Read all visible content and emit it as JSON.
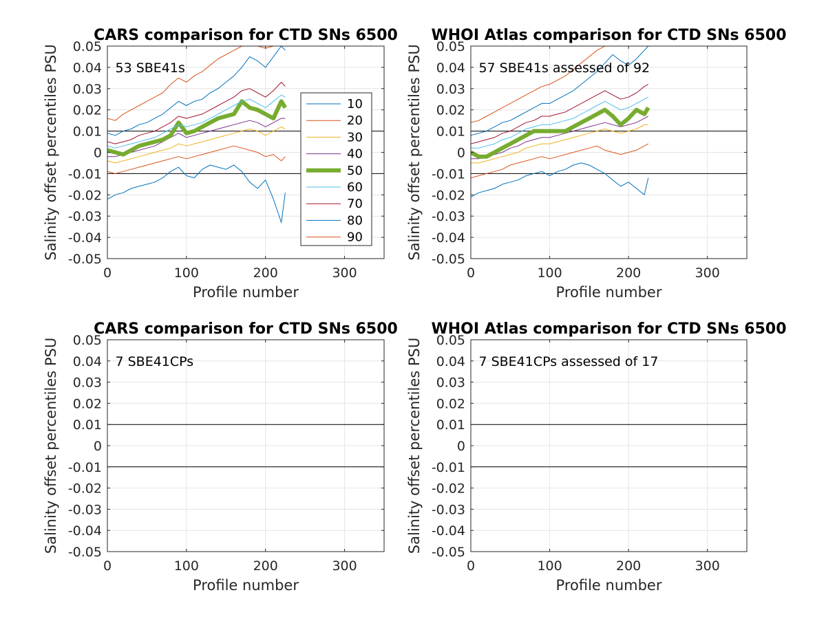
{
  "chart_data": [
    {
      "type": "line",
      "title": "CARS comparison for CTD SNs 6500",
      "xlabel": "Profile number",
      "ylabel": "Salinity offset percentiles PSU",
      "xlim": [
        0,
        350
      ],
      "ylim": [
        -0.05,
        0.05
      ],
      "xticks": [
        0,
        100,
        200,
        300
      ],
      "yticks": [
        -0.05,
        -0.04,
        -0.03,
        -0.02,
        -0.01,
        0,
        0.01,
        0.02,
        0.03,
        0.04,
        0.05
      ],
      "ytick_labels": [
        "-0.05",
        "-0.04",
        "-0.03",
        "-0.02",
        "-0.01",
        "0",
        "0.01",
        "0.02",
        "0.03",
        "0.04",
        "0.05"
      ],
      "xtick_labels": [
        "0",
        "100",
        "200",
        "300"
      ],
      "grid": true,
      "reference_lines": [
        0.01,
        -0.01
      ],
      "annotation": "53 SBE41s",
      "legend": {
        "placement": "inside-right",
        "entries": [
          "10",
          "20",
          "30",
          "40",
          "50",
          "60",
          "70",
          "80",
          "90"
        ]
      },
      "x": [
        0,
        10,
        20,
        30,
        40,
        50,
        60,
        70,
        80,
        90,
        100,
        110,
        120,
        130,
        140,
        150,
        160,
        170,
        180,
        190,
        200,
        210,
        220,
        225
      ],
      "series": [
        {
          "name": "10",
          "color": "#0072BD",
          "width": 1,
          "values": [
            -0.022,
            -0.02,
            -0.019,
            -0.017,
            -0.016,
            -0.015,
            -0.014,
            -0.012,
            -0.009,
            -0.007,
            -0.011,
            -0.012,
            -0.008,
            -0.006,
            -0.007,
            -0.008,
            -0.006,
            -0.009,
            -0.014,
            -0.017,
            -0.013,
            -0.022,
            -0.033,
            -0.019
          ]
        },
        {
          "name": "20",
          "color": "#D95319",
          "width": 1,
          "values": [
            -0.009,
            -0.01,
            -0.009,
            -0.008,
            -0.007,
            -0.006,
            -0.005,
            -0.004,
            -0.003,
            -0.002,
            -0.003,
            -0.002,
            -0.001,
            0.0,
            0.001,
            0.002,
            0.003,
            0.002,
            0.001,
            0.0,
            -0.002,
            -0.001,
            -0.004,
            -0.002
          ]
        },
        {
          "name": "30",
          "color": "#EDB120",
          "width": 1,
          "values": [
            -0.004,
            -0.005,
            -0.004,
            -0.003,
            -0.002,
            -0.001,
            0.0,
            0.001,
            0.002,
            0.004,
            0.003,
            0.004,
            0.005,
            0.006,
            0.007,
            0.008,
            0.009,
            0.01,
            0.011,
            0.01,
            0.008,
            0.01,
            0.012,
            0.011
          ]
        },
        {
          "name": "40",
          "color": "#7E2F8E",
          "width": 1,
          "values": [
            -0.002,
            -0.002,
            -0.001,
            0.0,
            0.001,
            0.002,
            0.003,
            0.005,
            0.007,
            0.009,
            0.007,
            0.008,
            0.009,
            0.01,
            0.011,
            0.012,
            0.013,
            0.014,
            0.015,
            0.014,
            0.012,
            0.014,
            0.016,
            0.016
          ]
        },
        {
          "name": "50",
          "color": "#77AC30",
          "width": 6,
          "values": [
            0.001,
            0.0,
            -0.001,
            0.001,
            0.003,
            0.004,
            0.005,
            0.006,
            0.008,
            0.014,
            0.009,
            0.01,
            0.012,
            0.014,
            0.016,
            0.017,
            0.018,
            0.024,
            0.021,
            0.02,
            0.018,
            0.016,
            0.024,
            0.021
          ]
        },
        {
          "name": "60",
          "color": "#4DBEEE",
          "width": 1,
          "values": [
            0.003,
            0.002,
            0.003,
            0.004,
            0.005,
            0.006,
            0.007,
            0.009,
            0.011,
            0.013,
            0.012,
            0.013,
            0.014,
            0.016,
            0.018,
            0.02,
            0.022,
            0.024,
            0.025,
            0.023,
            0.021,
            0.024,
            0.027,
            0.026
          ]
        },
        {
          "name": "70",
          "color": "#A2142F",
          "width": 1,
          "values": [
            0.005,
            0.004,
            0.005,
            0.006,
            0.008,
            0.009,
            0.01,
            0.012,
            0.014,
            0.017,
            0.016,
            0.017,
            0.018,
            0.02,
            0.022,
            0.024,
            0.026,
            0.029,
            0.03,
            0.028,
            0.026,
            0.029,
            0.033,
            0.031
          ]
        },
        {
          "name": "80",
          "color": "#0072BD",
          "width": 1,
          "values": [
            0.009,
            0.008,
            0.01,
            0.011,
            0.013,
            0.014,
            0.016,
            0.018,
            0.021,
            0.024,
            0.022,
            0.024,
            0.025,
            0.028,
            0.03,
            0.033,
            0.036,
            0.04,
            0.045,
            0.043,
            0.04,
            0.045,
            0.05,
            0.048
          ]
        },
        {
          "name": "90",
          "color": "#D95319",
          "width": 1,
          "values": [
            0.016,
            0.015,
            0.018,
            0.02,
            0.022,
            0.024,
            0.026,
            0.028,
            0.032,
            0.035,
            0.033,
            0.036,
            0.038,
            0.041,
            0.044,
            0.046,
            0.048,
            0.05,
            0.05,
            0.05,
            0.049,
            0.05,
            0.05,
            0.05
          ]
        }
      ]
    },
    {
      "type": "line",
      "title": "WHOI Atlas comparison for CTD SNs 6500",
      "xlabel": "Profile number",
      "ylabel": "Salinity offset percentiles PSU",
      "xlim": [
        0,
        350
      ],
      "ylim": [
        -0.05,
        0.05
      ],
      "xticks": [
        0,
        100,
        200,
        300
      ],
      "yticks": [
        -0.05,
        -0.04,
        -0.03,
        -0.02,
        -0.01,
        0,
        0.01,
        0.02,
        0.03,
        0.04,
        0.05
      ],
      "ytick_labels": [
        "-0.05",
        "-0.04",
        "-0.03",
        "-0.02",
        "-0.01",
        "0",
        "0.01",
        "0.02",
        "0.03",
        "0.04",
        "0.05"
      ],
      "xtick_labels": [
        "0",
        "100",
        "200",
        "300"
      ],
      "grid": true,
      "reference_lines": [
        0.01,
        -0.01
      ],
      "annotation": "57 SBE41s assessed of 92",
      "x": [
        0,
        10,
        20,
        30,
        40,
        50,
        60,
        70,
        80,
        90,
        100,
        110,
        120,
        130,
        140,
        150,
        160,
        170,
        180,
        190,
        200,
        210,
        220,
        225
      ],
      "series": [
        {
          "name": "10",
          "color": "#0072BD",
          "width": 1,
          "values": [
            -0.021,
            -0.019,
            -0.018,
            -0.017,
            -0.015,
            -0.014,
            -0.013,
            -0.011,
            -0.01,
            -0.009,
            -0.011,
            -0.009,
            -0.008,
            -0.006,
            -0.005,
            -0.006,
            -0.008,
            -0.01,
            -0.013,
            -0.016,
            -0.014,
            -0.017,
            -0.02,
            -0.012
          ]
        },
        {
          "name": "20",
          "color": "#D95319",
          "width": 1,
          "values": [
            -0.012,
            -0.011,
            -0.01,
            -0.009,
            -0.008,
            -0.006,
            -0.005,
            -0.004,
            -0.003,
            -0.002,
            -0.003,
            -0.002,
            -0.001,
            0.0,
            0.001,
            0.002,
            0.003,
            0.001,
            0.0,
            -0.001,
            0.0,
            0.001,
            0.003,
            0.004
          ]
        },
        {
          "name": "30",
          "color": "#EDB120",
          "width": 1,
          "values": [
            -0.005,
            -0.005,
            -0.004,
            -0.003,
            -0.002,
            -0.001,
            0.0,
            0.002,
            0.003,
            0.004,
            0.004,
            0.005,
            0.006,
            0.007,
            0.008,
            0.009,
            0.01,
            0.011,
            0.01,
            0.009,
            0.01,
            0.011,
            0.013,
            0.013
          ]
        },
        {
          "name": "40",
          "color": "#7E2F8E",
          "width": 1,
          "values": [
            -0.003,
            -0.003,
            -0.002,
            -0.001,
            0.0,
            0.002,
            0.003,
            0.005,
            0.006,
            0.007,
            0.007,
            0.008,
            0.009,
            0.01,
            0.011,
            0.012,
            0.013,
            0.014,
            0.013,
            0.012,
            0.013,
            0.014,
            0.016,
            0.017
          ]
        },
        {
          "name": "50",
          "color": "#77AC30",
          "width": 6,
          "values": [
            0.0,
            -0.002,
            -0.002,
            0.0,
            0.002,
            0.004,
            0.006,
            0.008,
            0.01,
            0.01,
            0.01,
            0.01,
            0.01,
            0.012,
            0.014,
            0.016,
            0.018,
            0.02,
            0.017,
            0.013,
            0.016,
            0.02,
            0.018,
            0.021
          ]
        },
        {
          "name": "60",
          "color": "#4DBEEE",
          "width": 1,
          "values": [
            0.002,
            0.002,
            0.003,
            0.004,
            0.006,
            0.007,
            0.009,
            0.011,
            0.012,
            0.013,
            0.013,
            0.014,
            0.015,
            0.016,
            0.018,
            0.02,
            0.022,
            0.024,
            0.022,
            0.02,
            0.021,
            0.023,
            0.025,
            0.026
          ]
        },
        {
          "name": "70",
          "color": "#A2142F",
          "width": 1,
          "values": [
            0.004,
            0.005,
            0.006,
            0.007,
            0.009,
            0.01,
            0.012,
            0.014,
            0.015,
            0.017,
            0.017,
            0.018,
            0.019,
            0.021,
            0.023,
            0.025,
            0.027,
            0.029,
            0.027,
            0.025,
            0.026,
            0.028,
            0.031,
            0.032
          ]
        },
        {
          "name": "80",
          "color": "#0072BD",
          "width": 1,
          "values": [
            0.008,
            0.009,
            0.01,
            0.012,
            0.014,
            0.015,
            0.017,
            0.019,
            0.021,
            0.023,
            0.023,
            0.025,
            0.027,
            0.029,
            0.032,
            0.035,
            0.038,
            0.042,
            0.046,
            0.043,
            0.041,
            0.044,
            0.048,
            0.05
          ]
        },
        {
          "name": "90",
          "color": "#D95319",
          "width": 1,
          "values": [
            0.014,
            0.015,
            0.017,
            0.019,
            0.021,
            0.023,
            0.025,
            0.027,
            0.029,
            0.031,
            0.032,
            0.034,
            0.036,
            0.039,
            0.042,
            0.045,
            0.048,
            0.05,
            0.05,
            0.05,
            0.05,
            0.05,
            0.05,
            0.05
          ]
        }
      ]
    },
    {
      "type": "line",
      "title": "CARS comparison for CTD SNs 6500",
      "xlabel": "Profile number",
      "ylabel": "Salinity offset percentiles PSU",
      "xlim": [
        0,
        350
      ],
      "ylim": [
        -0.05,
        0.05
      ],
      "xticks": [
        0,
        100,
        200,
        300
      ],
      "yticks": [
        -0.05,
        -0.04,
        -0.03,
        -0.02,
        -0.01,
        0,
        0.01,
        0.02,
        0.03,
        0.04,
        0.05
      ],
      "ytick_labels": [
        "-0.05",
        "-0.04",
        "-0.03",
        "-0.02",
        "-0.01",
        "0",
        "0.01",
        "0.02",
        "0.03",
        "0.04",
        "0.05"
      ],
      "xtick_labels": [
        "0",
        "100",
        "200",
        "300"
      ],
      "grid": true,
      "reference_lines": [
        0.01,
        -0.01
      ],
      "annotation": "7 SBE41CPs",
      "series": []
    },
    {
      "type": "line",
      "title": "WHOI Atlas comparison for CTD SNs 6500",
      "xlabel": "Profile number",
      "ylabel": "Salinity offset percentiles PSU",
      "xlim": [
        0,
        350
      ],
      "ylim": [
        -0.05,
        0.05
      ],
      "xticks": [
        0,
        100,
        200,
        300
      ],
      "yticks": [
        -0.05,
        -0.04,
        -0.03,
        -0.02,
        -0.01,
        0,
        0.01,
        0.02,
        0.03,
        0.04,
        0.05
      ],
      "ytick_labels": [
        "-0.05",
        "-0.04",
        "-0.03",
        "-0.02",
        "-0.01",
        "0",
        "0.01",
        "0.02",
        "0.03",
        "0.04",
        "0.05"
      ],
      "xtick_labels": [
        "0",
        "100",
        "200",
        "300"
      ],
      "grid": true,
      "reference_lines": [
        0.01,
        -0.01
      ],
      "annotation": "7 SBE41CPs assessed of 17",
      "series": []
    }
  ]
}
